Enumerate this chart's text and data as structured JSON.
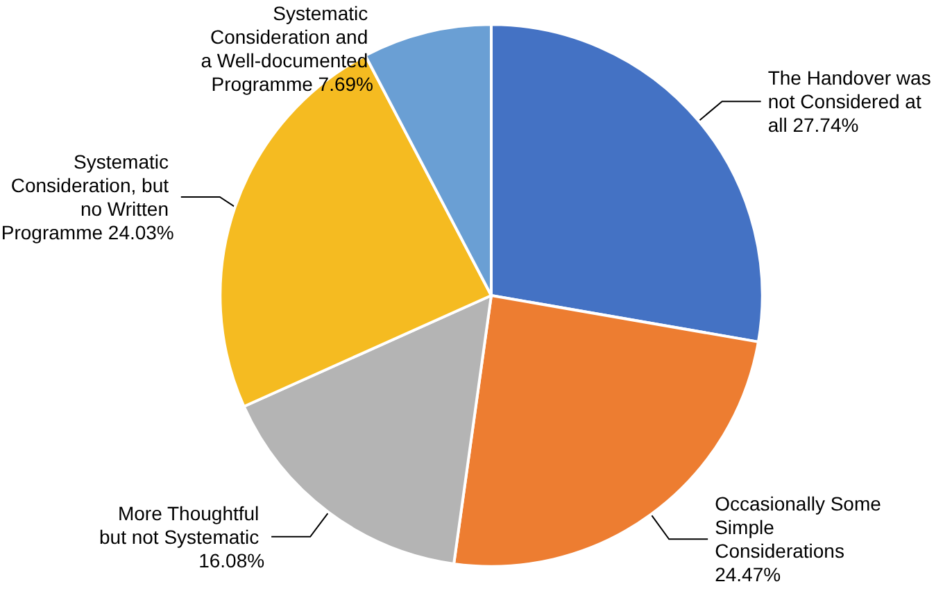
{
  "chart_data": {
    "type": "pie",
    "categories": [
      "The Handover was not Considered at all",
      "Occasionally Some Simple Considerations",
      "More Thoughtful but not Systematic",
      "Systematic Consideration, but no Written Programme",
      "Systematic Consideration and a Well-documented Programme"
    ],
    "values": [
      27.74,
      24.47,
      16.08,
      24.03,
      7.69
    ],
    "colors": [
      "#4472c4",
      "#ed7d31",
      "#b4b4b4",
      "#f5bb21",
      "#6a9fd4"
    ],
    "value_labels": [
      "27.74%",
      "24.47%",
      "16.08%",
      "24.03%",
      "7.69%"
    ],
    "legend": false
  }
}
